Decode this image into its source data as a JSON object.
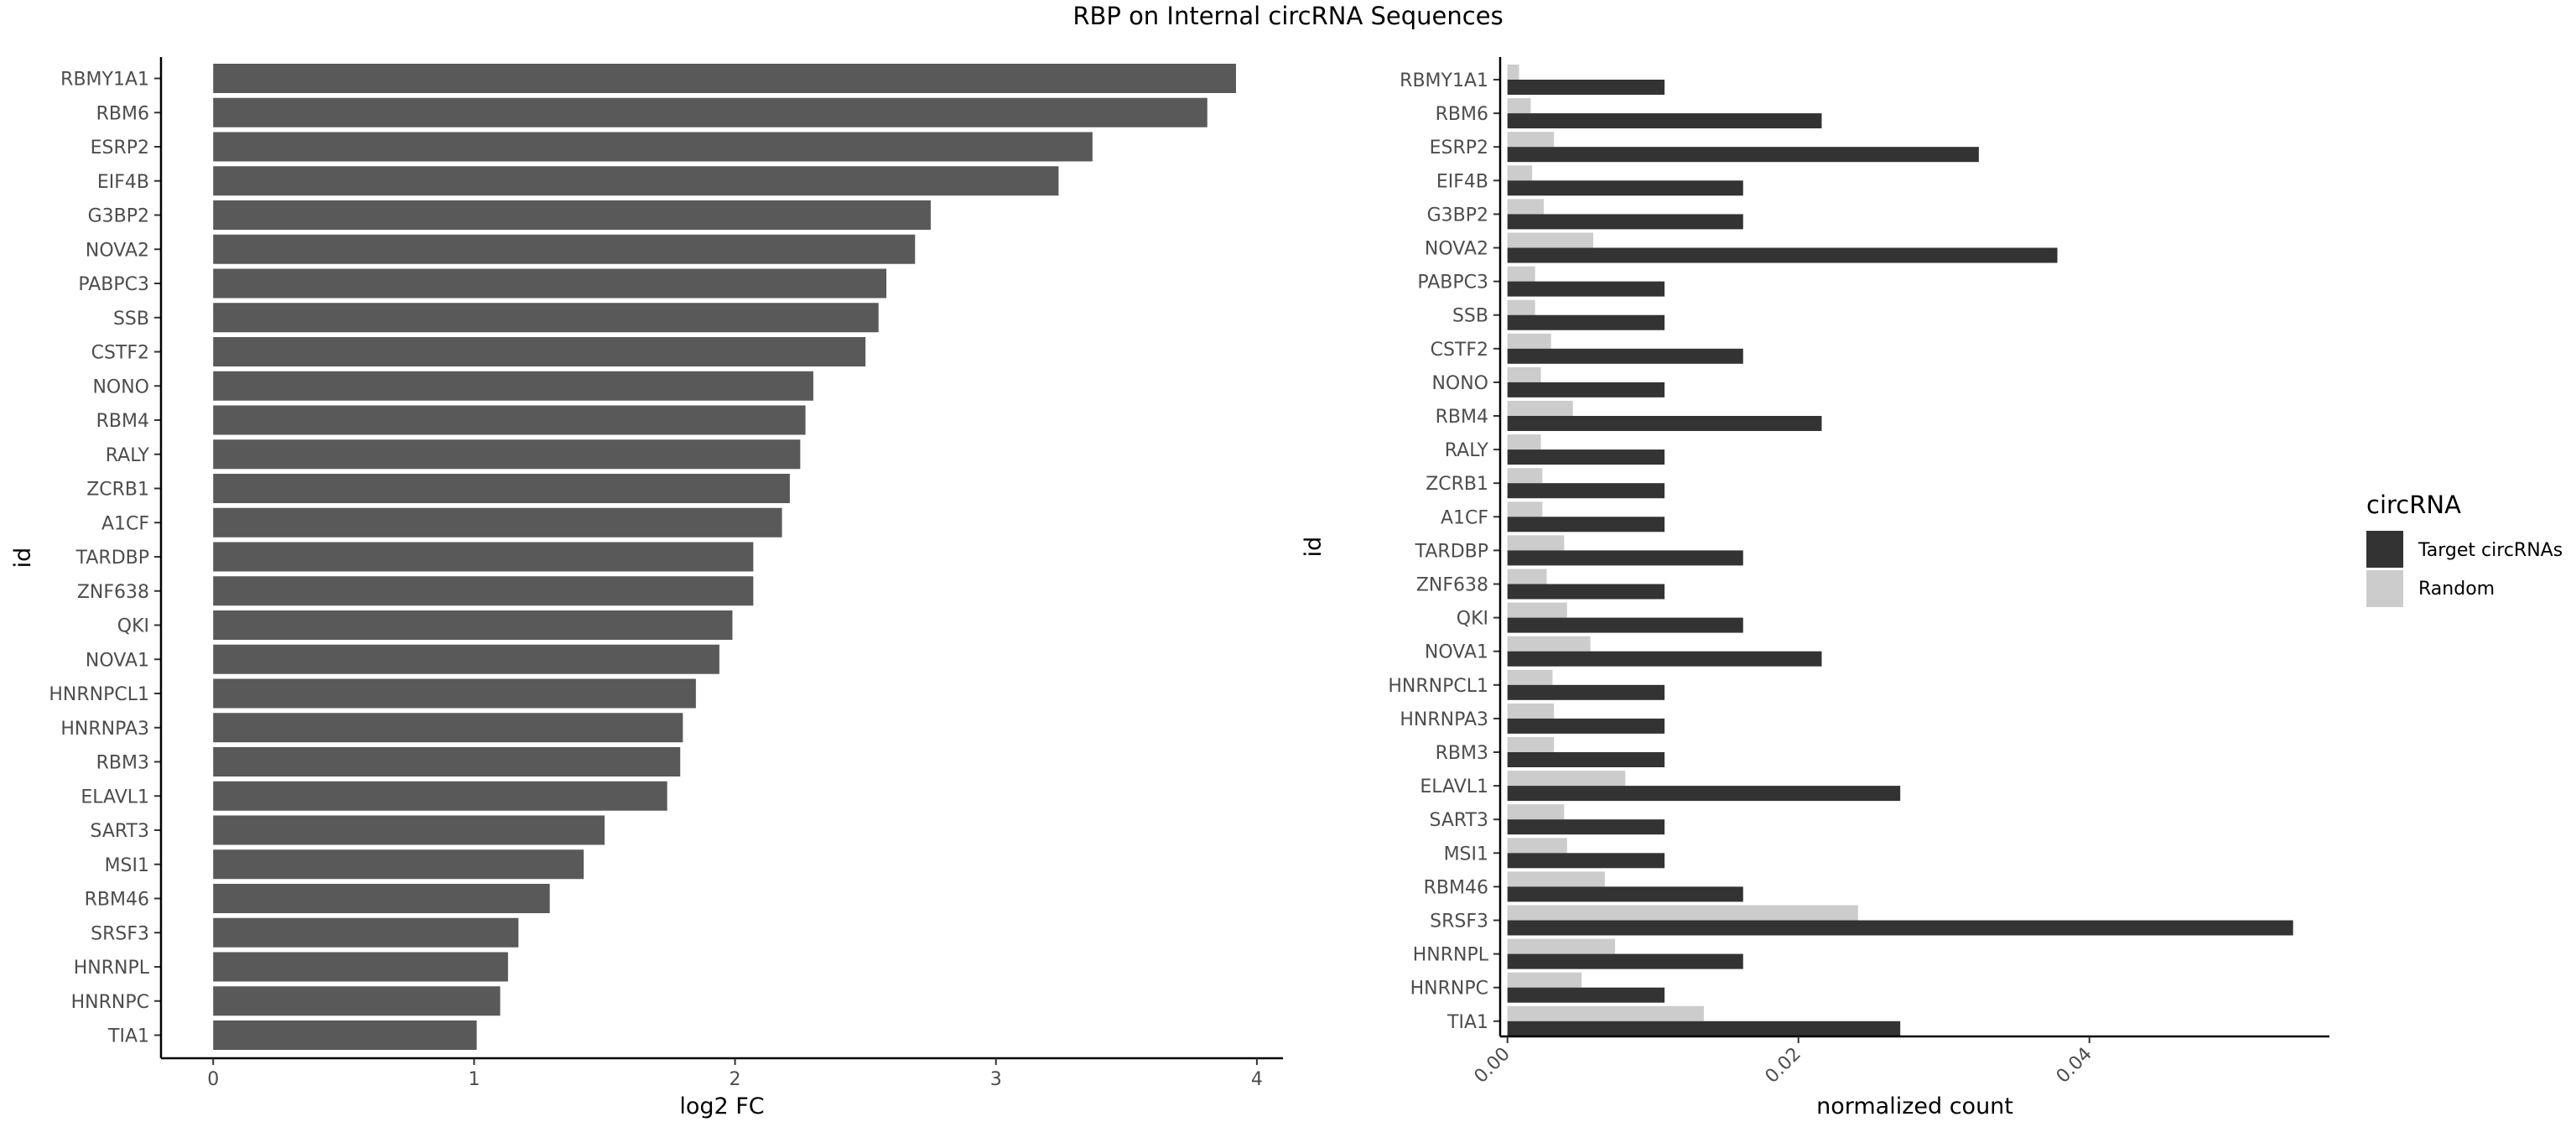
{
  "title": "RBP on Internal circRNA Sequences",
  "chart_data": [
    {
      "type": "bar",
      "orientation": "horizontal",
      "title": "",
      "xlabel": "log2 FC",
      "ylabel": "id",
      "categories": [
        "RBMY1A1",
        "RBM6",
        "ESRP2",
        "EIF4B",
        "G3BP2",
        "NOVA2",
        "PABPC3",
        "SSB",
        "CSTF2",
        "NONO",
        "RBM4",
        "RALY",
        "ZCRB1",
        "A1CF",
        "TARDBP",
        "ZNF638",
        "QKI",
        "NOVA1",
        "HNRNPCL1",
        "HNRNPA3",
        "RBM3",
        "ELAVL1",
        "SART3",
        "MSI1",
        "RBM46",
        "SRSF3",
        "HNRNPL",
        "HNRNPC",
        "TIA1"
      ],
      "values": [
        3.92,
        3.81,
        3.37,
        3.24,
        2.75,
        2.69,
        2.58,
        2.55,
        2.5,
        2.3,
        2.27,
        2.25,
        2.21,
        2.18,
        2.07,
        2.07,
        1.99,
        1.94,
        1.85,
        1.8,
        1.79,
        1.74,
        1.5,
        1.42,
        1.29,
        1.17,
        1.13,
        1.1,
        1.01
      ],
      "xlim": [
        -0.2,
        4.1
      ],
      "xticks": [
        "0",
        "1",
        "2",
        "3",
        "4"
      ],
      "bar_color": "#595959",
      "grid": false
    },
    {
      "type": "bar",
      "orientation": "horizontal",
      "title": "",
      "xlabel": "normalized count",
      "ylabel": "id",
      "categories": [
        "RBMY1A1",
        "RBM6",
        "ESRP2",
        "EIF4B",
        "G3BP2",
        "NOVA2",
        "PABPC3",
        "SSB",
        "CSTF2",
        "NONO",
        "RBM4",
        "RALY",
        "ZCRB1",
        "A1CF",
        "TARDBP",
        "ZNF638",
        "QKI",
        "NOVA1",
        "HNRNPCL1",
        "HNRNPA3",
        "RBM3",
        "ELAVL1",
        "SART3",
        "MSI1",
        "RBM46",
        "SRSF3",
        "HNRNPL",
        "HNRNPC",
        "TIA1"
      ],
      "series": [
        {
          "name": "Target circRNAs",
          "color": "#333333",
          "values": [
            0.0108,
            0.0216,
            0.0324,
            0.0162,
            0.0162,
            0.0378,
            0.0108,
            0.0108,
            0.0162,
            0.0108,
            0.0216,
            0.0108,
            0.0108,
            0.0108,
            0.0162,
            0.0108,
            0.0162,
            0.0216,
            0.0108,
            0.0108,
            0.0108,
            0.027,
            0.0108,
            0.0108,
            0.0162,
            0.054,
            0.0162,
            0.0108,
            0.027
          ]
        },
        {
          "name": "Random",
          "color": "#cccccc",
          "values": [
            0.0008,
            0.0016,
            0.0032,
            0.0017,
            0.0025,
            0.0059,
            0.0019,
            0.0019,
            0.003,
            0.0023,
            0.0045,
            0.0023,
            0.0024,
            0.0024,
            0.0039,
            0.0027,
            0.0041,
            0.0057,
            0.0031,
            0.0032,
            0.0032,
            0.0081,
            0.0039,
            0.0041,
            0.0067,
            0.0241,
            0.0074,
            0.0051,
            0.0135
          ]
        }
      ],
      "xlim": [
        -0.0005,
        0.0565
      ],
      "xticks": [
        "0.00",
        "0.02",
        "0.04"
      ],
      "grid": false,
      "legend": {
        "title": "circRNA",
        "position": "right"
      }
    }
  ]
}
